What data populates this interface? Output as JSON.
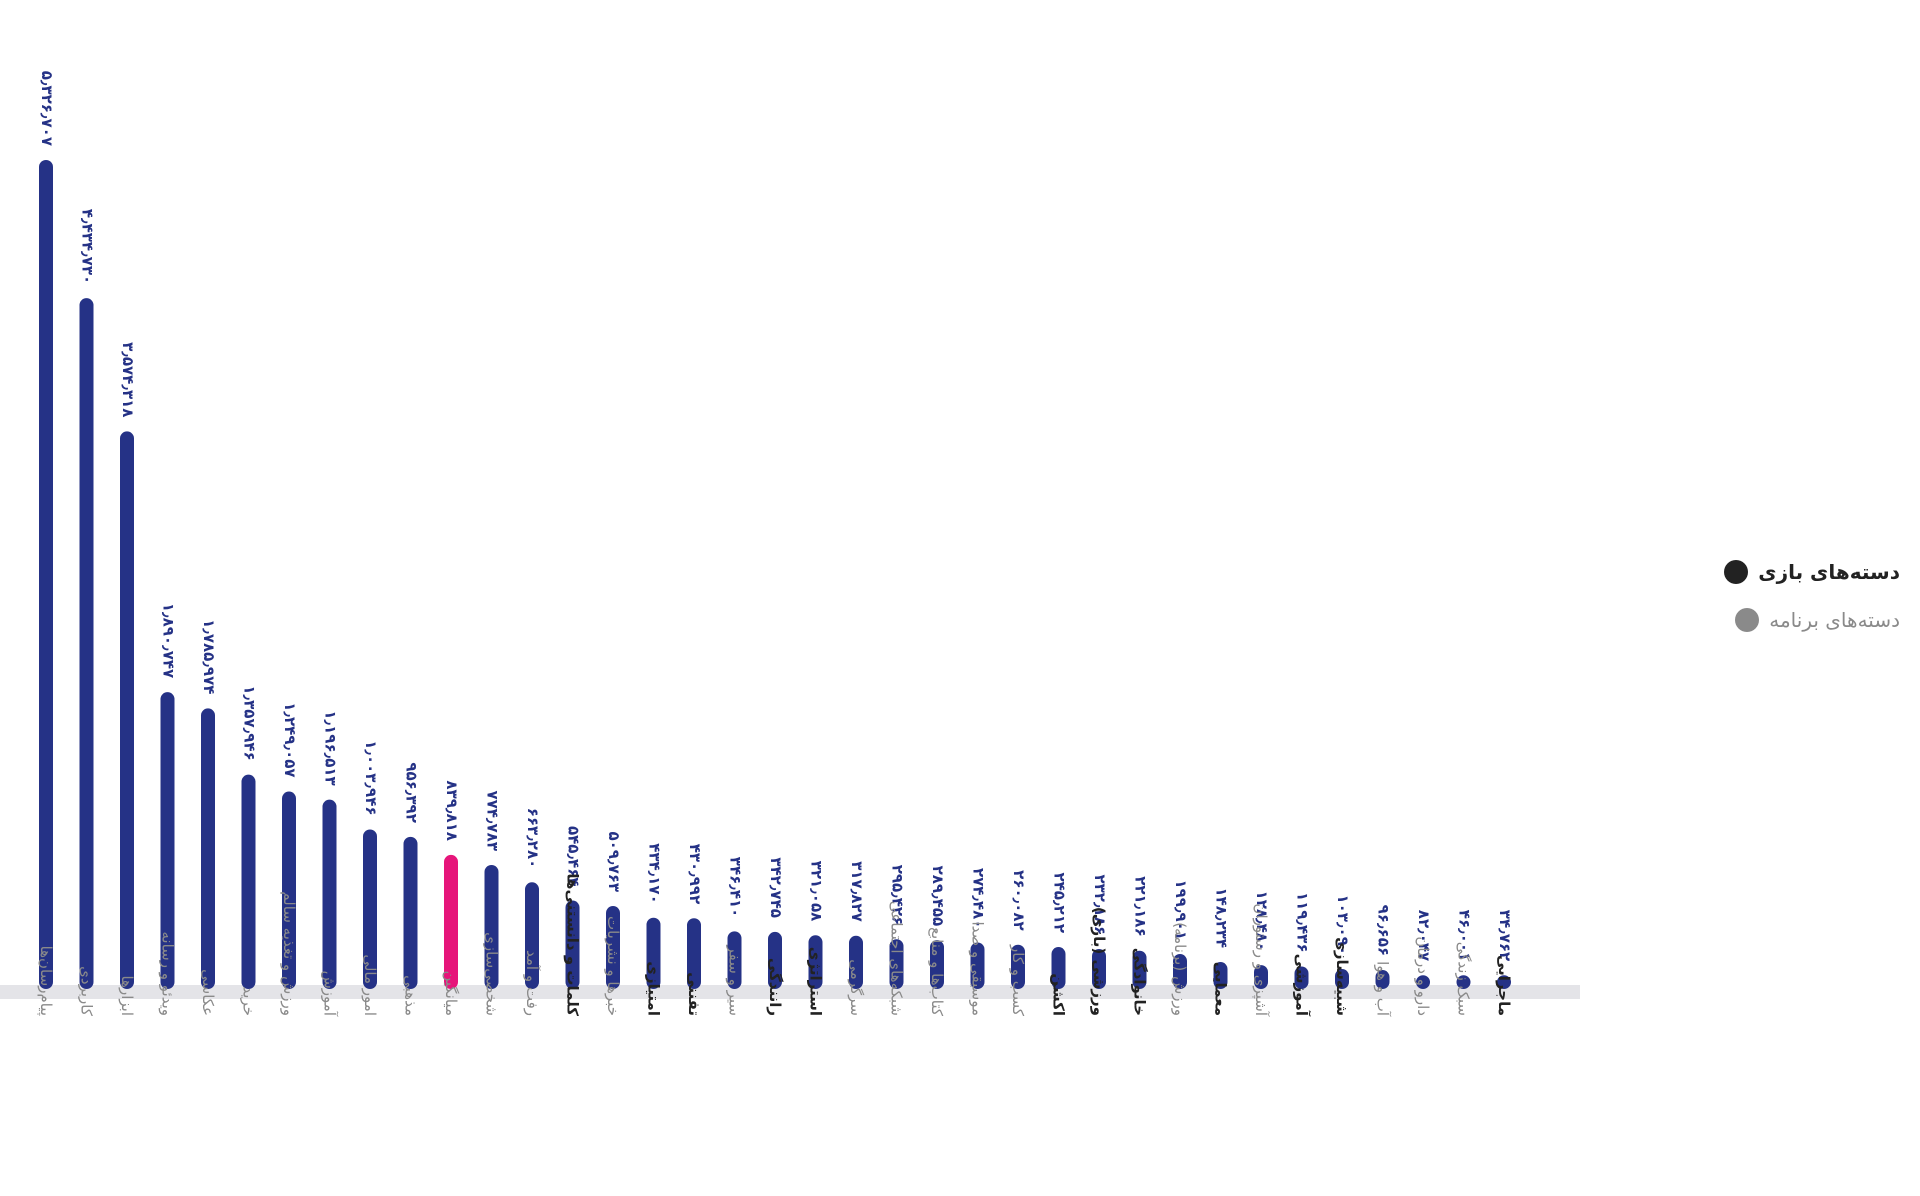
{
  "chart_data": {
    "type": "bar",
    "categories": [
      "پیام‌رسان‌ها",
      "کاربردی",
      "ابزارها",
      "ویدئو و رسانه",
      "عکاسی",
      "خرید",
      "ورزش و تغذیه سالم",
      "آموزش",
      "امور مالی",
      "مذهبی",
      "میانگین",
      "شخصی‌سازی",
      "رفت و آمد",
      "کلمات و دانستنی‌ها",
      "خبرها و نشریات",
      "امتیازی",
      "تفننی",
      "سیر و سفر",
      "رانندگی",
      "استراتژی",
      "سرگرمی",
      "شبکه‌های اجتماعی",
      "کتاب‌ها و منابع",
      "موسیقی و صدا",
      "کسب و کار",
      "اکشن",
      "ورزشی (بازی)",
      "خانوادگی",
      "ورزش (برنامه)",
      "معمایی",
      "آشپزی و رستوران",
      "آموزشی",
      "شبیه‌سازی",
      "آب و هوا",
      "دارو و درمان",
      "سبک زندگی",
      "ماجرایی"
    ],
    "category_groups": [
      "app",
      "app",
      "app",
      "app",
      "app",
      "app",
      "app",
      "app",
      "app",
      "app",
      "average",
      "app",
      "app",
      "game",
      "app",
      "game",
      "game",
      "app",
      "game",
      "game",
      "app",
      "app",
      "app",
      "app",
      "app",
      "game",
      "game",
      "game",
      "app",
      "game",
      "app",
      "game",
      "game",
      "app",
      "app",
      "app",
      "game"
    ],
    "values": [
      5326707,
      4434730,
      3574318,
      1890747,
      1785974,
      1357946,
      1249057,
      1196513,
      1003946,
      956392,
      839818,
      774783,
      663280,
      545464,
      509763,
      434170,
      430992,
      346410,
      342745,
      321058,
      317827,
      295426,
      289455,
      274480,
      260082,
      245212,
      232186,
      221186,
      199901,
      148234,
      128480,
      119436,
      103090,
      96656,
      82047,
      46001,
      34762
    ],
    "value_labels": [
      "۵٫۳۲۶٫۷۰۷",
      "۴٫۴۳۴٫۷۳۰",
      "۳٫۵۷۴٫۳۱۸",
      "۱٫۸۹۰٫۷۴۷",
      "۱٫۷۸۵٫۹۷۴",
      "۱٫۳۵۷٫۹۴۶",
      "۱٫۲۴۹٫۰۵۷",
      "۱٫۱۹۶٫۵۱۳",
      "۱٫۰۰۳٫۹۴۶",
      "۹۵۶٫۳۹۲",
      "۸۳۹٫۸۱۸",
      "۷۷۴٫۷۸۳",
      "۶۶۳٫۲۸۰",
      "۵۴۵٫۴۶۴",
      "۵۰۹٫۷۶۳",
      "۴۳۴٫۱۷۰",
      "۴۳۰٫۹۹۲",
      "۳۴۶٫۴۱۰",
      "۳۴۲٫۷۴۵",
      "۳۲۱٫۰۵۸",
      "۳۱۷٫۸۲۷",
      "۲۹۵٫۴۲۶",
      "۲۸۹٫۴۵۵",
      "۲۷۴٫۴۸۰",
      "۲۶۰٫۰۸۲",
      "۲۴۵٫۲۱۲",
      "۲۳۲٫۱۸۶",
      "۲۲۱٫۱۸۶",
      "۱۹۹٫۹۰۱",
      "۱۴۸٫۲۳۴",
      "۱۲۸٫۴۸۰",
      "۱۱۹٫۴۳۶",
      "۱۰۳٫۰۹۰",
      "۹۶٫۶۵۶",
      "۸۲٫۰۴۷",
      "۴۶٫۰۰۱",
      "۳۴٫۷۶۲"
    ],
    "ylim": [
      0,
      5326707
    ],
    "grid": false,
    "legend_position": "right",
    "legend": [
      {
        "name": "دسته‌های بازی",
        "color": "#222222",
        "group": "game"
      },
      {
        "name": "دسته‌های برنامه",
        "color": "#8a8a8a",
        "group": "app"
      }
    ],
    "colors": {
      "bar": "#253286",
      "average_bar": "#e6157a",
      "baseline": "#e4e4e8",
      "value_label": "#253286"
    }
  }
}
